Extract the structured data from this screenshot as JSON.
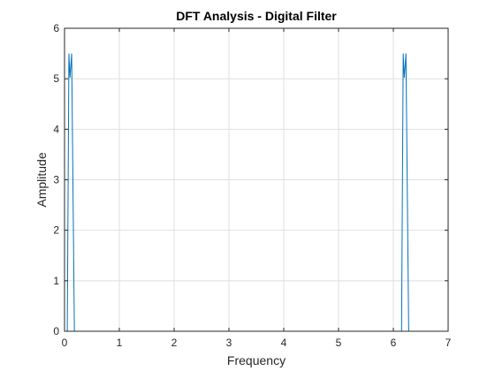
{
  "chart_data": {
    "type": "line",
    "title": "DFT Analysis - Digital Filter",
    "xlabel": "Frequency",
    "ylabel": "Amplitude",
    "xlim": [
      0,
      7
    ],
    "ylim": [
      0,
      6
    ],
    "xticks": [
      "0",
      "1",
      "2",
      "3",
      "4",
      "5",
      "6",
      "7"
    ],
    "yticks": [
      "0",
      "1",
      "2",
      "3",
      "4",
      "5",
      "6"
    ],
    "grid": true,
    "line_color": "#0072BD",
    "series": [
      {
        "x": [
          0.0,
          0.05,
          0.08,
          0.1,
          0.13,
          0.18,
          6.1,
          6.15,
          6.18,
          6.2,
          6.23,
          6.28
        ],
        "y": [
          0.0,
          0.0,
          5.5,
          5.02,
          5.5,
          0.0,
          0.0,
          0.0,
          5.5,
          5.02,
          5.5,
          0.0
        ]
      }
    ]
  }
}
